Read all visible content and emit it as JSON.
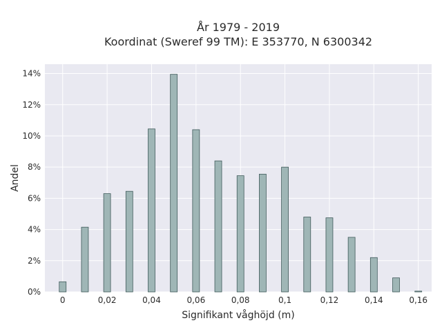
{
  "chart_data": {
    "type": "bar",
    "title_lines": [
      "År 1979 - 2019",
      "Koordinat (Sweref 99 TM): E 353770, N 6300342"
    ],
    "xlabel": "Signifikant våghöjd (m)",
    "ylabel": "Andel",
    "x": [
      0,
      0.01,
      0.02,
      0.03,
      0.04,
      0.05,
      0.06,
      0.07,
      0.08,
      0.09,
      0.1,
      0.11,
      0.12,
      0.13,
      0.14,
      0.15,
      0.16
    ],
    "values": [
      0.65,
      4.15,
      6.3,
      6.45,
      10.45,
      13.95,
      10.4,
      8.4,
      7.45,
      7.55,
      8.0,
      4.8,
      4.75,
      3.5,
      2.2,
      0.9,
      0.05
    ],
    "xlim": [
      -0.008,
      0.166
    ],
    "ylim": [
      0,
      14.6
    ],
    "x_ticks": [
      0,
      0.02,
      0.04,
      0.06,
      0.08,
      0.1,
      0.12,
      0.14,
      0.16
    ],
    "x_tick_labels": [
      "0",
      "0,02",
      "0,04",
      "0,06",
      "0,08",
      "0,1",
      "0,12",
      "0,14",
      "0,16"
    ],
    "y_ticks": [
      0,
      2,
      4,
      6,
      8,
      10,
      12,
      14
    ],
    "y_tick_labels": [
      "0%",
      "2%",
      "4%",
      "6%",
      "8%",
      "10%",
      "12%",
      "14%"
    ],
    "grid": true,
    "colors": {
      "plot_bg": "#e9e9f1",
      "grid": "#ffffff",
      "bar_fill": "#9fb6b6",
      "bar_stroke": "#3f5a5a"
    }
  }
}
